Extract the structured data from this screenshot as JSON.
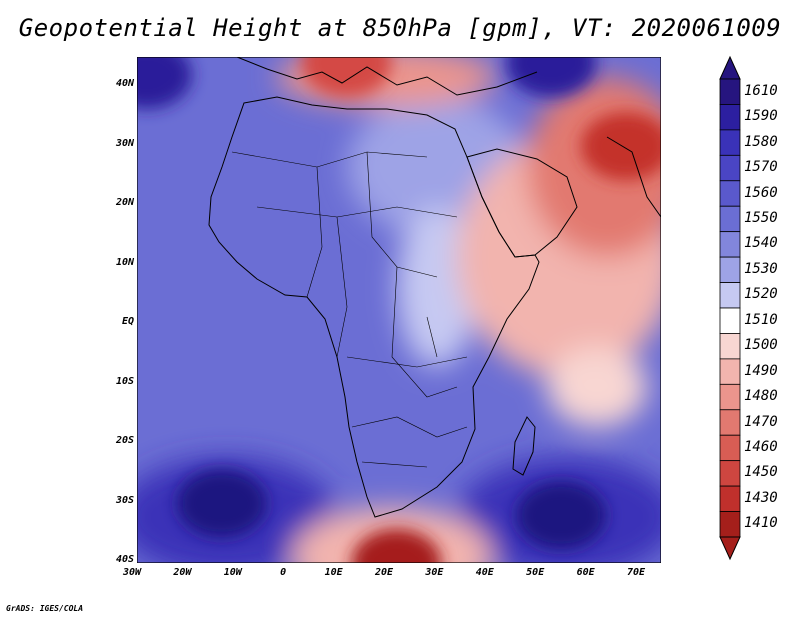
{
  "title": "Geopotential Height at 850hPa [gpm], VT: 2020061009",
  "footer": "GrADS: IGES/COLA",
  "map": {
    "lon_range": [
      -30,
      75
    ],
    "lat_range": [
      -40,
      45
    ],
    "y_ticks": [
      "40N",
      "30N",
      "20N",
      "10N",
      "EQ",
      "10S",
      "20S",
      "30S",
      "40S"
    ],
    "x_ticks": [
      "30W",
      "20W",
      "10W",
      "0",
      "10E",
      "20E",
      "30E",
      "40E",
      "50E",
      "60E",
      "70E"
    ]
  },
  "colorbar": {
    "labels": [
      "1610",
      "1590",
      "1580",
      "1570",
      "1560",
      "1550",
      "1540",
      "1530",
      "1520",
      "1510",
      "1500",
      "1490",
      "1480",
      "1470",
      "1460",
      "1450",
      "1430",
      "1410"
    ],
    "colors": [
      "#26157f",
      "#2c1fa0",
      "#3a32b8",
      "#4a45c4",
      "#5a59cc",
      "#6b6ed4",
      "#8286dc",
      "#9ea3e6",
      "#c6c9f2",
      "#ffffff",
      "#f8d6d2",
      "#f2b4ae",
      "#eb958d",
      "#e27970",
      "#d85d54",
      "#ce4640",
      "#c0302c",
      "#a51f1b"
    ]
  },
  "fields": {
    "highs": [
      {
        "name": "south-atlantic-high",
        "lon": -13,
        "lat": -30,
        "color": "#1f1380"
      },
      {
        "name": "south-indian-high",
        "lon": 55,
        "lat": -32,
        "color": "#1f1380"
      },
      {
        "name": "north-atlantic-high",
        "lon": -28,
        "lat": 42,
        "color": "#2a1c9a"
      },
      {
        "name": "central-asia-high",
        "lon": 53,
        "lat": 44,
        "color": "#2a1c9a"
      }
    ],
    "lows": [
      {
        "name": "arabian-low",
        "lon": 68,
        "lat": 30,
        "color": "#c4302c"
      },
      {
        "name": "south-africa-low",
        "lon": 22,
        "lat": -40,
        "color": "#a51f1b"
      },
      {
        "name": "mediterranean-low",
        "lon": 12,
        "lat": 44,
        "color": "#d44a44"
      }
    ]
  }
}
